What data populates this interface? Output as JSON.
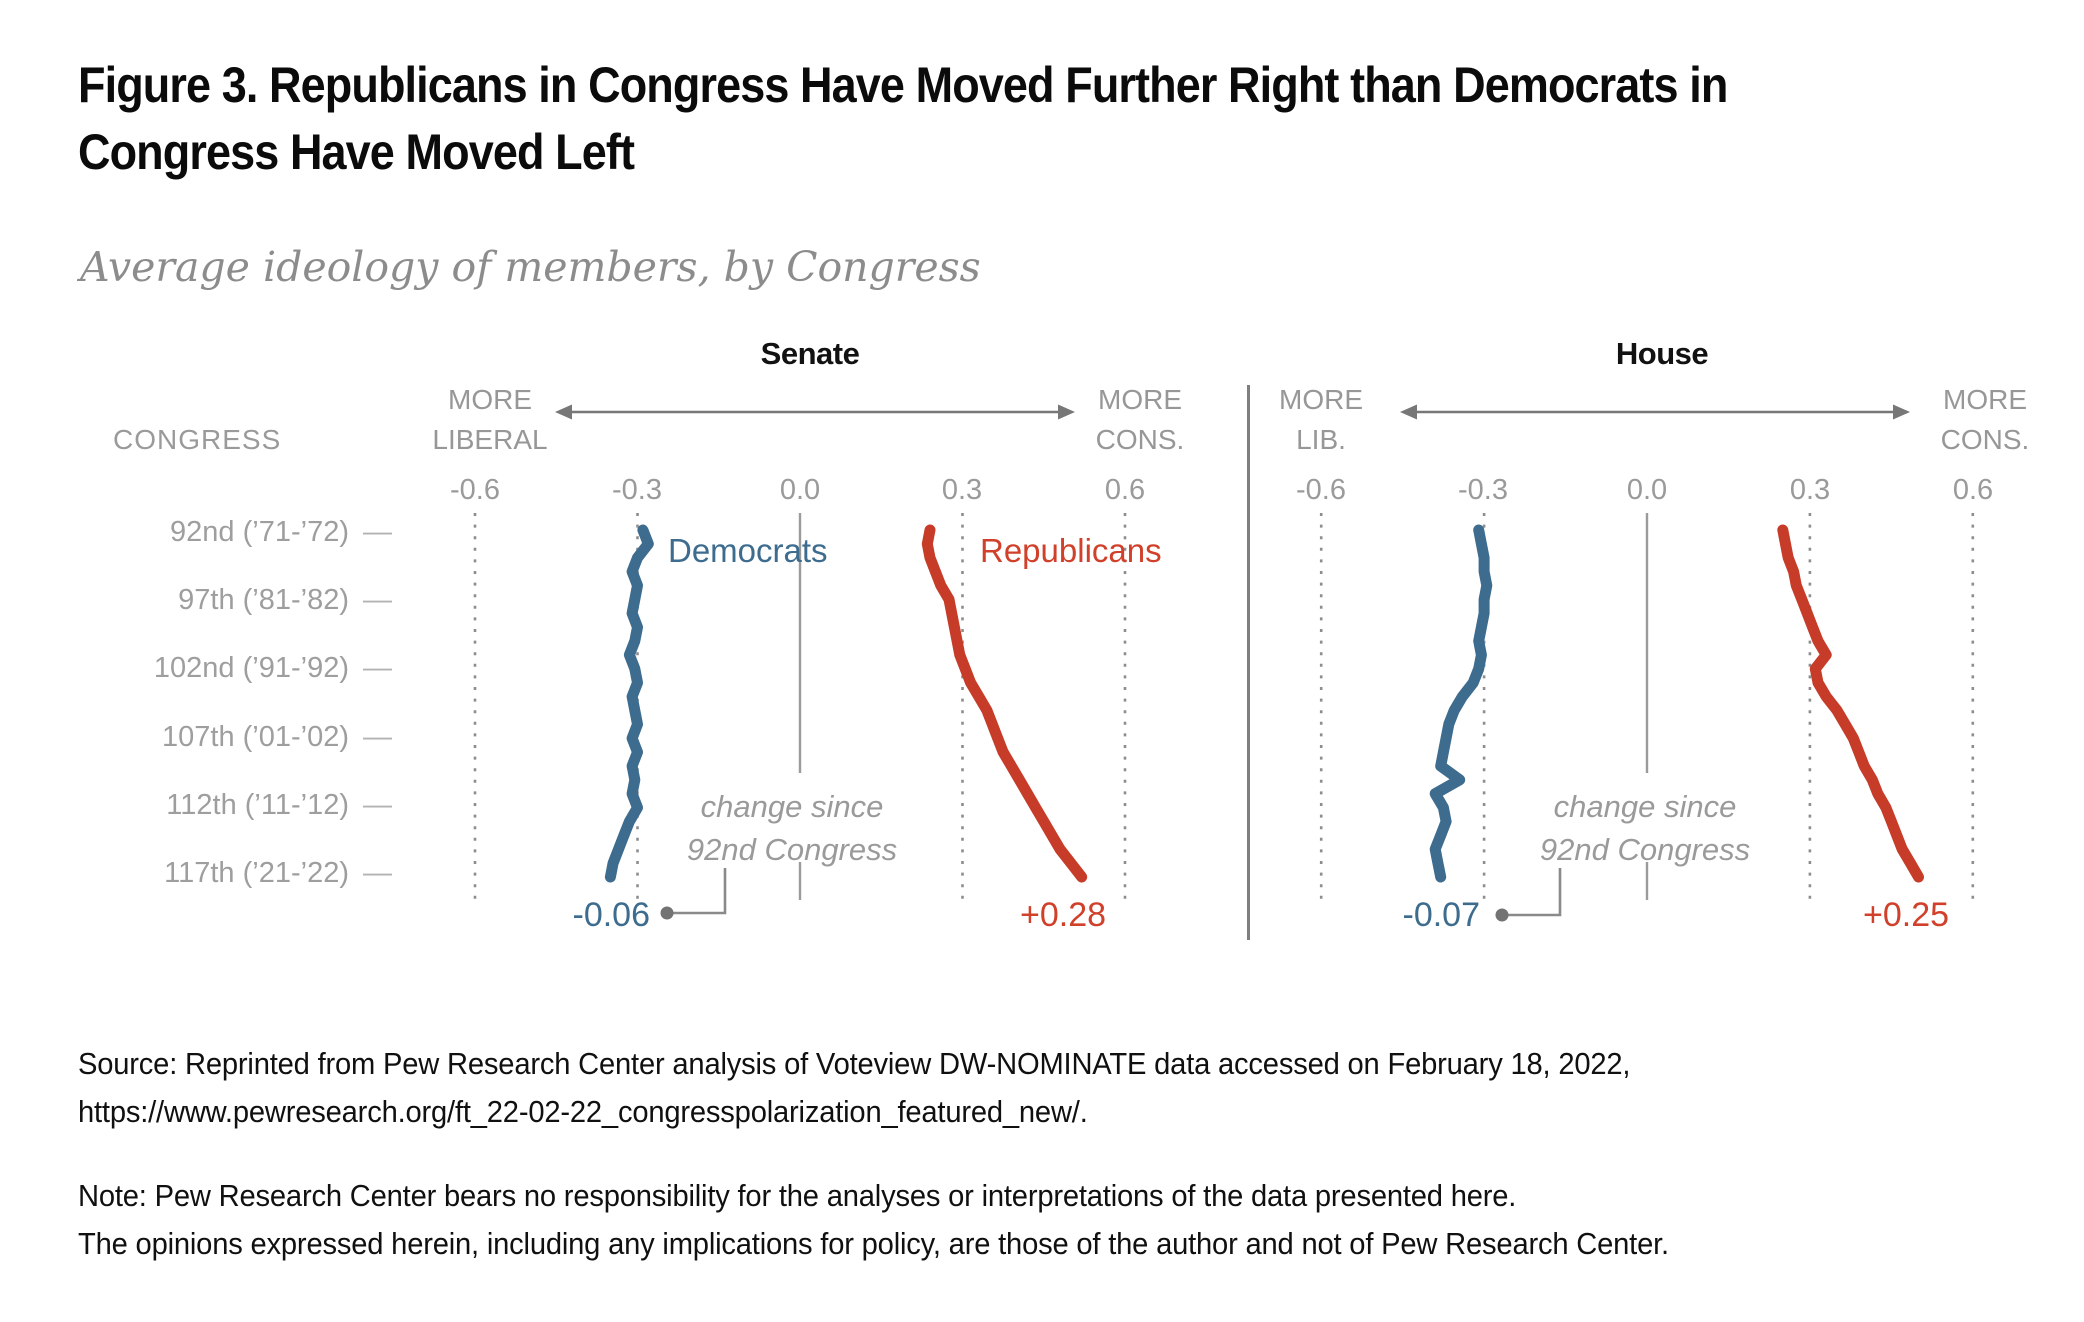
{
  "title": {
    "line1": "Figure 3. Republicans in Congress Have Moved Further Right than Democrats in",
    "line2": "Congress Have Moved Left"
  },
  "subtitle": "Average ideology of members, by Congress",
  "congress_axis": {
    "header": "CONGRESS",
    "tick_dash": "—",
    "rows": [
      "92nd (’71-’72)",
      "97th (’81-’82)",
      "102nd (’91-’92)",
      "107th (’01-’02)",
      "112th (’11-’12)",
      "117th (’21-’22)"
    ]
  },
  "panels": [
    {
      "chamber": "Senate",
      "more_left": [
        "MORE",
        "LIBERAL"
      ],
      "more_right": [
        "MORE",
        "CONS."
      ],
      "ticks": [
        "-0.6",
        "-0.3",
        "0.0",
        "0.3",
        "0.6"
      ],
      "party_labels": {
        "democrats": "Democrats",
        "republicans": "Republicans"
      },
      "annotation": [
        "change since",
        "92nd Congress"
      ],
      "change": {
        "dem": "-0.06",
        "rep": "+0.28"
      }
    },
    {
      "chamber": "House",
      "more_left": [
        "MORE",
        "LIB."
      ],
      "more_right": [
        "MORE",
        "CONS."
      ],
      "ticks": [
        "-0.6",
        "-0.3",
        "0.0",
        "0.3",
        "0.6"
      ],
      "annotation": [
        "change since",
        "92nd Congress"
      ],
      "change": {
        "dem": "-0.07",
        "rep": "+0.25"
      }
    }
  ],
  "colors": {
    "democrat_blue": "#3d6c8e",
    "republican_red": "#c63c29",
    "gray_text": "#9a9a9a"
  },
  "chart_data": [
    {
      "type": "line",
      "chamber": "Senate",
      "orientation": "vertical-time-axis",
      "congresses": [
        92,
        93,
        94,
        95,
        96,
        97,
        98,
        99,
        100,
        101,
        102,
        103,
        104,
        105,
        106,
        107,
        108,
        109,
        110,
        111,
        112,
        113,
        114,
        115,
        116,
        117
      ],
      "axis_ticks": [
        -0.6,
        -0.3,
        0.0,
        0.3,
        0.6
      ],
      "axis_range": [
        -0.75,
        0.75
      ],
      "series": [
        {
          "name": "Democrats",
          "color": "#3d6c8e",
          "values": [
            -0.29,
            -0.28,
            -0.3,
            -0.31,
            -0.3,
            -0.305,
            -0.31,
            -0.3,
            -0.305,
            -0.315,
            -0.305,
            -0.3,
            -0.31,
            -0.305,
            -0.3,
            -0.31,
            -0.3,
            -0.31,
            -0.305,
            -0.31,
            -0.3,
            -0.315,
            -0.325,
            -0.335,
            -0.345,
            -0.35
          ]
        },
        {
          "name": "Republicans",
          "color": "#c63c29",
          "values": [
            0.24,
            0.235,
            0.24,
            0.25,
            0.26,
            0.275,
            0.28,
            0.285,
            0.29,
            0.295,
            0.305,
            0.315,
            0.33,
            0.345,
            0.355,
            0.365,
            0.375,
            0.39,
            0.405,
            0.42,
            0.435,
            0.45,
            0.465,
            0.48,
            0.5,
            0.52
          ]
        }
      ],
      "change_since_92nd": {
        "Democrats": -0.06,
        "Republicans": 0.28
      }
    },
    {
      "type": "line",
      "chamber": "House",
      "orientation": "vertical-time-axis",
      "congresses": [
        92,
        93,
        94,
        95,
        96,
        97,
        98,
        99,
        100,
        101,
        102,
        103,
        104,
        105,
        106,
        107,
        108,
        109,
        110,
        111,
        112,
        113,
        114,
        115,
        116,
        117
      ],
      "axis_ticks": [
        -0.6,
        -0.3,
        0.0,
        0.3,
        0.6
      ],
      "axis_range": [
        -0.75,
        0.75
      ],
      "series": [
        {
          "name": "Democrats",
          "color": "#3d6c8e",
          "values": [
            -0.31,
            -0.305,
            -0.3,
            -0.3,
            -0.295,
            -0.3,
            -0.3,
            -0.305,
            -0.31,
            -0.305,
            -0.31,
            -0.32,
            -0.34,
            -0.355,
            -0.365,
            -0.37,
            -0.375,
            -0.38,
            -0.345,
            -0.39,
            -0.375,
            -0.37,
            -0.38,
            -0.39,
            -0.385,
            -0.38
          ]
        },
        {
          "name": "Republicans",
          "color": "#c63c29",
          "values": [
            0.25,
            0.255,
            0.26,
            0.27,
            0.275,
            0.285,
            0.295,
            0.305,
            0.315,
            0.33,
            0.31,
            0.315,
            0.33,
            0.35,
            0.365,
            0.38,
            0.39,
            0.4,
            0.415,
            0.425,
            0.44,
            0.45,
            0.46,
            0.47,
            0.485,
            0.5
          ]
        }
      ],
      "change_since_92nd": {
        "Democrats": -0.07,
        "Republicans": 0.25
      }
    }
  ],
  "source": {
    "line1": "Source: Reprinted from Pew Research Center analysis of Voteview DW-NOMINATE data accessed on February 18, 2022,",
    "line2": "https://www.pewresearch.org/ft_22-02-22_congresspolarization_featured_new/."
  },
  "note": {
    "line1": "Note: Pew Research Center bears no responsibility for the analyses or interpretations of the data presented here.",
    "line2": "The opinions expressed herein, including any implications for policy, are those of the author and not of Pew Research Center."
  }
}
